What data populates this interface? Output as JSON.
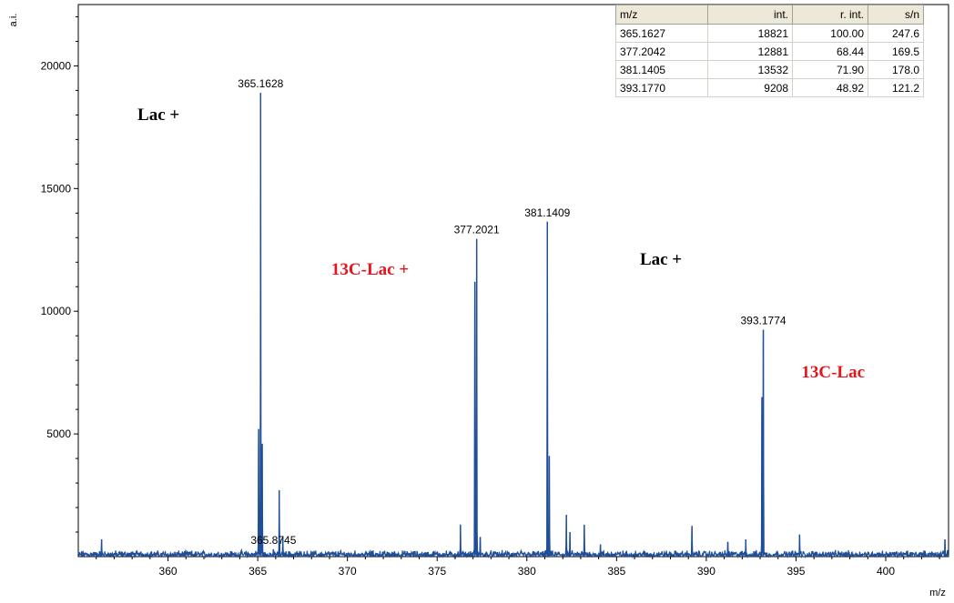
{
  "chart_data": {
    "type": "line",
    "title": "",
    "xlabel": "m/z",
    "ylabel": "a.i.",
    "xlim": [
      355.0,
      403.5
    ],
    "ylim": [
      0,
      22500
    ],
    "xticks": [
      360,
      365,
      370,
      375,
      380,
      385,
      390,
      395,
      400
    ],
    "yticks": [
      5000,
      10000,
      15000,
      20000
    ],
    "grid": false,
    "line_color": "#1f4e9b",
    "baseline_noise": 200,
    "peaks": [
      {
        "mz": 356.3,
        "intensity": 700
      },
      {
        "mz": 365.1628,
        "intensity": 18900,
        "label": "365.1628"
      },
      {
        "mz": 365.05,
        "intensity": 5200
      },
      {
        "mz": 365.25,
        "intensity": 4600
      },
      {
        "mz": 365.8745,
        "intensity": 300,
        "label": "365.8745"
      },
      {
        "mz": 366.2,
        "intensity": 2700
      },
      {
        "mz": 366.4,
        "intensity": 800
      },
      {
        "mz": 376.3,
        "intensity": 1300
      },
      {
        "mz": 377.2021,
        "intensity": 12950,
        "label": "377.2021"
      },
      {
        "mz": 377.1,
        "intensity": 11200
      },
      {
        "mz": 377.4,
        "intensity": 800
      },
      {
        "mz": 381.1409,
        "intensity": 13650,
        "label": "381.1409"
      },
      {
        "mz": 381.25,
        "intensity": 4100
      },
      {
        "mz": 382.2,
        "intensity": 1700
      },
      {
        "mz": 382.4,
        "intensity": 1000
      },
      {
        "mz": 383.2,
        "intensity": 1300
      },
      {
        "mz": 384.1,
        "intensity": 500
      },
      {
        "mz": 389.2,
        "intensity": 1250
      },
      {
        "mz": 391.2,
        "intensity": 600
      },
      {
        "mz": 392.2,
        "intensity": 700
      },
      {
        "mz": 393.1774,
        "intensity": 9250,
        "label": "393.1774"
      },
      {
        "mz": 393.1,
        "intensity": 6500
      },
      {
        "mz": 395.2,
        "intensity": 900
      },
      {
        "mz": 403.3,
        "intensity": 700
      }
    ],
    "annotations": [
      {
        "text": "Lac +",
        "x": 358.3,
        "y": 17800,
        "color": "#000000"
      },
      {
        "text": "13C-Lac +",
        "x": 369.1,
        "y": 11500,
        "color": "#e8141c"
      },
      {
        "text": "Lac +",
        "x": 386.3,
        "y": 11900,
        "color": "#000000"
      },
      {
        "text": "13C-Lac",
        "x": 395.3,
        "y": 7300,
        "color": "#e8141c"
      }
    ]
  },
  "table": {
    "headers": [
      "m/z",
      "int.",
      "r. int.",
      "s/n"
    ],
    "rows": [
      [
        "365.1627",
        "18821",
        "100.00",
        "247.6"
      ],
      [
        "377.2042",
        "12881",
        "68.44",
        "169.5"
      ],
      [
        "381.1405",
        "13532",
        "71.90",
        "178.0"
      ],
      [
        "393.1770",
        "9208",
        "48.92",
        "121.2"
      ]
    ]
  }
}
